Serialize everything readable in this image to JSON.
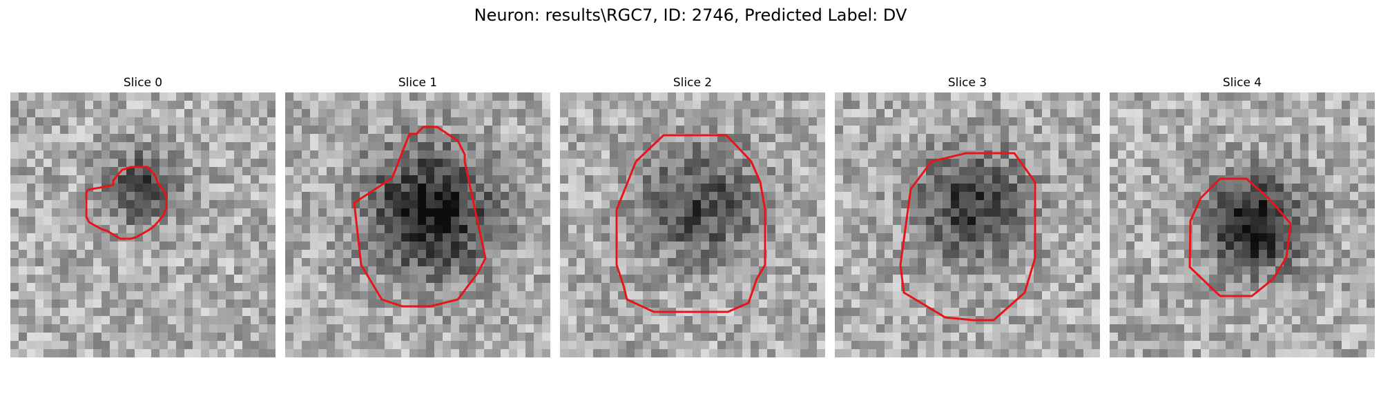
{
  "figure": {
    "title": "Neuron: results\\RGC7, ID: 2746, Predicted Label: DV",
    "contour_color": "#e8141a"
  },
  "slices": [
    {
      "label": "Slice 0",
      "blob_center": [
        0.5,
        0.36
      ],
      "blob_radius": 0.17,
      "blob_strength": 0.42
    },
    {
      "label": "Slice 1",
      "blob_center": [
        0.55,
        0.45
      ],
      "blob_radius": 0.3,
      "blob_strength": 0.6
    },
    {
      "label": "Slice 2",
      "blob_center": [
        0.52,
        0.42
      ],
      "blob_radius": 0.28,
      "blob_strength": 0.4
    },
    {
      "label": "Slice 3",
      "blob_center": [
        0.52,
        0.42
      ],
      "blob_radius": 0.26,
      "blob_strength": 0.45
    },
    {
      "label": "Slice 4",
      "blob_center": [
        0.55,
        0.5
      ],
      "blob_radius": 0.22,
      "blob_strength": 0.62
    }
  ]
}
